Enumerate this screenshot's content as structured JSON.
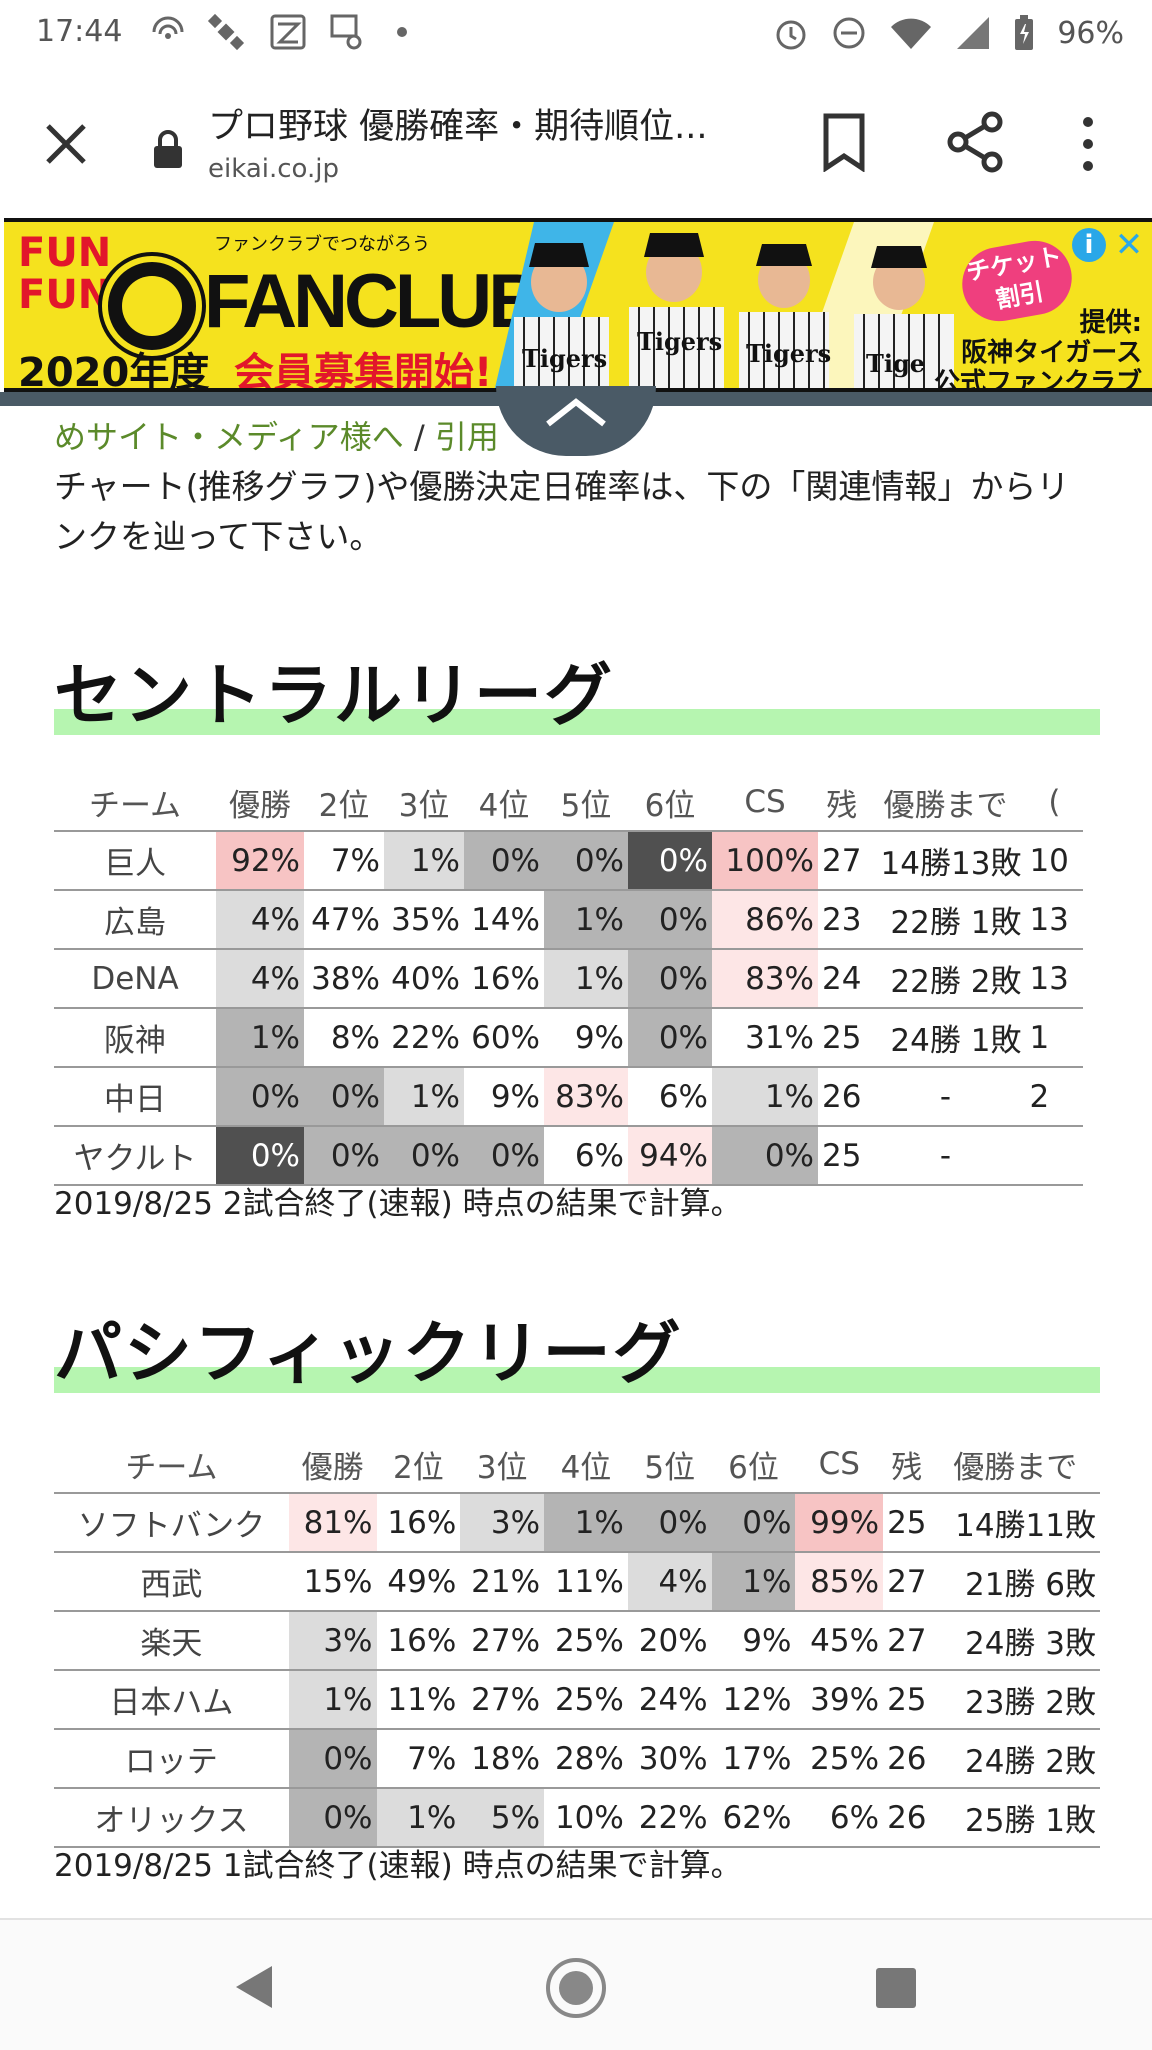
{
  "status_bar": {
    "time": "17:44",
    "battery": "96%"
  },
  "browser": {
    "page_title": "プロ野球 優勝確率・期待順位...",
    "domain": "eikai.co.jp"
  },
  "ad": {
    "fun_line1": "FUN",
    "fun_line2": "FUN",
    "tagline": "ファンクラブでつながろう",
    "headline": "FANCLUB",
    "year": "2020年度",
    "recruit": "会員募集開始!",
    "ticket_line1": "チケット",
    "ticket_line2": "割引",
    "sponsor_line1": "提供:",
    "sponsor_line2": "阪神タイガース",
    "sponsor_line3": "公式ファンクラブ",
    "player1_jersey": "Tigers",
    "player2_jersey": "Tigers",
    "player3_jersey": "Tigers",
    "player4_jersey": "Tige",
    "info_glyph": "i",
    "close_glyph": "✕"
  },
  "breadcrumb": {
    "link1": "めサイト・メディア様へ",
    "separator": "/",
    "link2": "引用"
  },
  "intro_text": "チャート(推移グラフ)や優勝決定日確率は、下の「関連情報」からリンクを辿って下さい。",
  "central": {
    "heading": "セントラルリーグ",
    "headers": [
      "チーム",
      "優勝",
      "2位",
      "3位",
      "4位",
      "5位",
      "6位",
      "CS",
      "残",
      "優勝まで",
      "("
    ],
    "rows": [
      {
        "team": "巨人",
        "cells": [
          "92%",
          "7%",
          "1%",
          "0%",
          "0%",
          "0%",
          "100%"
        ],
        "remaining": "27",
        "magic": "14勝13敗",
        "extra": "10"
      },
      {
        "team": "広島",
        "cells": [
          "4%",
          "47%",
          "35%",
          "14%",
          "1%",
          "0%",
          "86%"
        ],
        "remaining": "23",
        "magic": "22勝 1敗",
        "extra": "13"
      },
      {
        "team": "DeNA",
        "cells": [
          "4%",
          "38%",
          "40%",
          "16%",
          "1%",
          "0%",
          "83%"
        ],
        "remaining": "24",
        "magic": "22勝 2敗",
        "extra": "13"
      },
      {
        "team": "阪神",
        "cells": [
          "1%",
          "8%",
          "22%",
          "60%",
          "9%",
          "0%",
          "31%"
        ],
        "remaining": "25",
        "magic": "24勝 1敗",
        "extra": "1"
      },
      {
        "team": "中日",
        "cells": [
          "0%",
          "0%",
          "1%",
          "9%",
          "83%",
          "6%",
          "1%"
        ],
        "remaining": "26",
        "magic": "-",
        "extra": "2"
      },
      {
        "team": "ヤクルト",
        "cells": [
          "0%",
          "0%",
          "0%",
          "0%",
          "6%",
          "94%",
          "0%"
        ],
        "remaining": "25",
        "magic": "-",
        "extra": ""
      }
    ],
    "note": "2019/8/25 2試合終了(速報) 時点の結果で計算。"
  },
  "pacific": {
    "heading": "パシフィックリーグ",
    "headers": [
      "チーム",
      "優勝",
      "2位",
      "3位",
      "4位",
      "5位",
      "6位",
      "CS",
      "残",
      "優勝まで"
    ],
    "rows": [
      {
        "team": "ソフトバンク",
        "cells": [
          "81%",
          "16%",
          "3%",
          "1%",
          "0%",
          "0%",
          "99%"
        ],
        "remaining": "25",
        "magic": "14勝11敗"
      },
      {
        "team": "西武",
        "cells": [
          "15%",
          "49%",
          "21%",
          "11%",
          "4%",
          "1%",
          "85%"
        ],
        "remaining": "27",
        "magic": "21勝 6敗"
      },
      {
        "team": "楽天",
        "cells": [
          "3%",
          "16%",
          "27%",
          "25%",
          "20%",
          "9%",
          "45%"
        ],
        "remaining": "27",
        "magic": "24勝 3敗"
      },
      {
        "team": "日本ハム",
        "cells": [
          "1%",
          "11%",
          "27%",
          "25%",
          "24%",
          "12%",
          "39%"
        ],
        "remaining": "25",
        "magic": "23勝 2敗"
      },
      {
        "team": "ロッテ",
        "cells": [
          "0%",
          "7%",
          "18%",
          "28%",
          "30%",
          "17%",
          "25%"
        ],
        "remaining": "26",
        "magic": "24勝 2敗"
      },
      {
        "team": "オリックス",
        "cells": [
          "0%",
          "1%",
          "5%",
          "10%",
          "22%",
          "62%",
          "6%"
        ],
        "remaining": "26",
        "magic": "25勝 1敗"
      }
    ],
    "note": "2019/8/25 1試合終了(速報) 時点の結果で計算。"
  },
  "colors": {
    "pink_strong": "#f7c4c4",
    "pink_light": "#fde6e6",
    "gray_light": "#dcdcdc",
    "gray_mid": "#b4b4b4",
    "gray_dark": "#505050",
    "highlight_bar": "#b6f5b0",
    "link": "#5b8a2a"
  }
}
